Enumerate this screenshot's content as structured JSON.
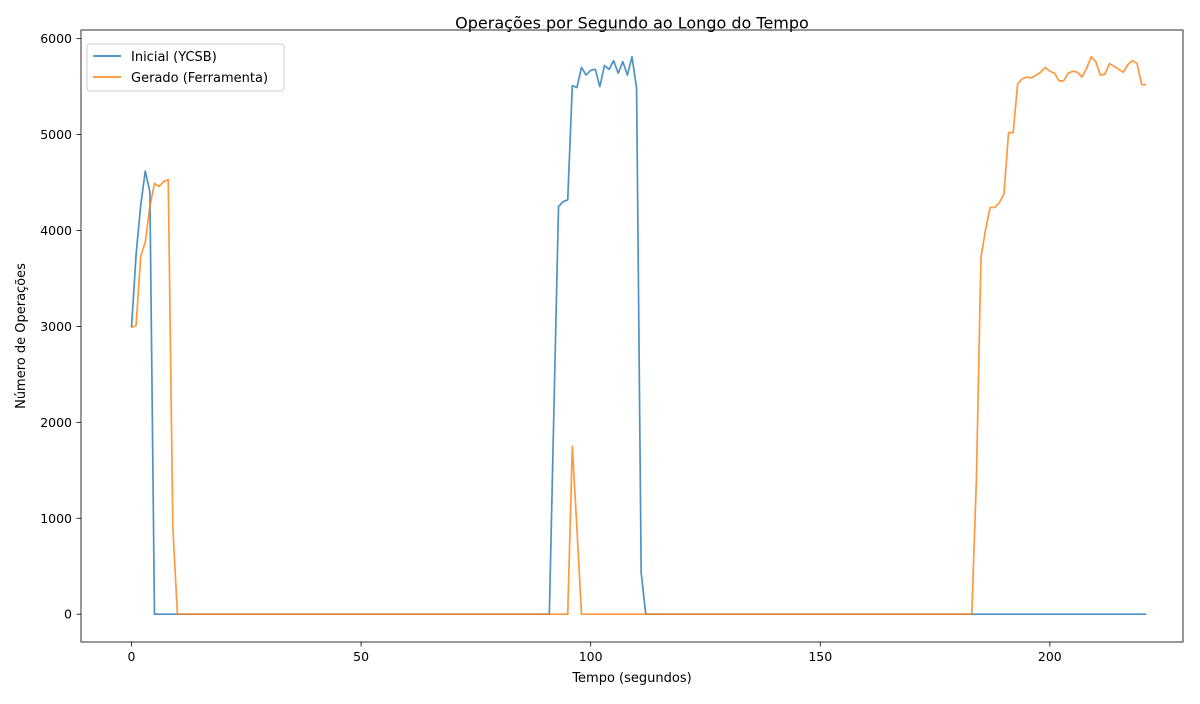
{
  "chart_data": {
    "type": "line",
    "title": "Operações por Segundo ao Longo do Tempo",
    "xlabel": "Tempo (segundos)",
    "ylabel": "Número de Operações",
    "xlim": [
      -11,
      229
    ],
    "ylim": [
      -290,
      6090
    ],
    "xticks": [
      0,
      50,
      100,
      150,
      200
    ],
    "yticks": [
      0,
      1000,
      2000,
      3000,
      4000,
      5000,
      6000
    ],
    "grid": false,
    "legend_position": "top-left",
    "series": [
      {
        "name": "Inicial (YCSB)",
        "color": "#1f77b4",
        "x": [
          0,
          1,
          2,
          3,
          4,
          5,
          6,
          90,
          91,
          92,
          93,
          94,
          95,
          96,
          97,
          98,
          99,
          100,
          101,
          102,
          103,
          104,
          105,
          106,
          107,
          108,
          109,
          110,
          111,
          112,
          221
        ],
        "y": [
          2990,
          3750,
          4260,
          4620,
          4400,
          0,
          0,
          0,
          0,
          2150,
          4250,
          4300,
          4320,
          5510,
          5490,
          5700,
          5620,
          5670,
          5680,
          5500,
          5720,
          5680,
          5770,
          5640,
          5760,
          5620,
          5810,
          5480,
          430,
          0,
          0
        ]
      },
      {
        "name": "Gerado (Ferramenta)",
        "color": "#ff7f0e",
        "x": [
          0,
          1,
          2,
          3,
          4,
          5,
          6,
          7,
          8,
          9,
          10,
          94,
          95,
          96,
          97,
          98,
          99,
          182,
          183,
          184,
          185,
          186,
          187,
          188,
          189,
          190,
          191,
          192,
          193,
          194,
          195,
          196,
          197,
          198,
          199,
          200,
          201,
          202,
          203,
          204,
          205,
          206,
          207,
          208,
          209,
          210,
          211,
          212,
          213,
          214,
          215,
          216,
          217,
          218,
          219,
          220,
          221
        ],
        "y": [
          2990,
          3010,
          3730,
          3880,
          4250,
          4490,
          4460,
          4510,
          4530,
          900,
          0,
          0,
          0,
          1750,
          900,
          0,
          0,
          0,
          0,
          1400,
          3720,
          4010,
          4240,
          4240,
          4290,
          4380,
          5020,
          5020,
          5530,
          5580,
          5600,
          5590,
          5620,
          5650,
          5700,
          5660,
          5640,
          5560,
          5560,
          5640,
          5660,
          5650,
          5600,
          5690,
          5810,
          5760,
          5620,
          5630,
          5740,
          5710,
          5680,
          5650,
          5730,
          5770,
          5740,
          5520,
          5520
        ]
      }
    ]
  }
}
